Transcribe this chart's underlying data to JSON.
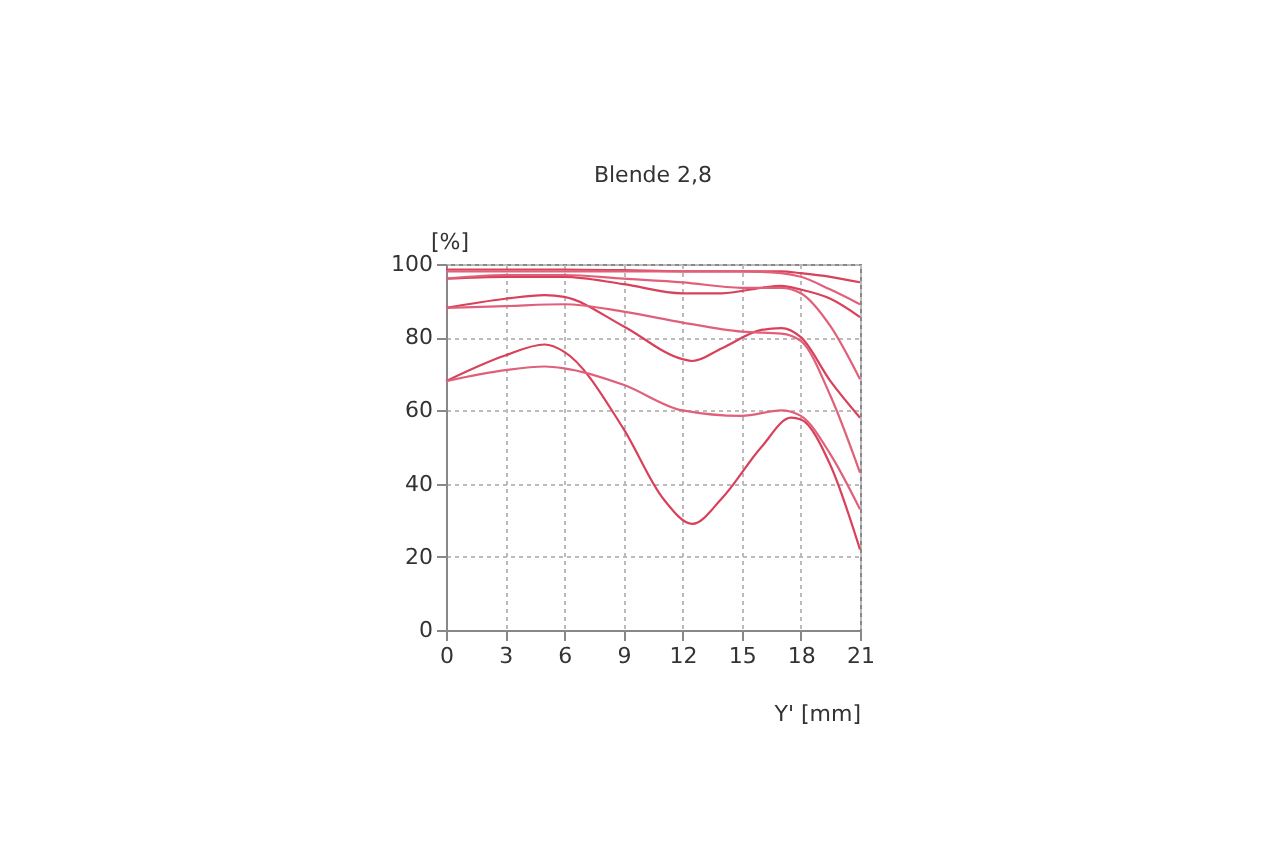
{
  "chart_data": {
    "type": "line",
    "title": "Blende 2,8",
    "xlabel": "Y' [mm]",
    "ylabel": "[%]",
    "xlim": [
      0,
      21
    ],
    "xticks": [
      0,
      3,
      6,
      9,
      12,
      15,
      18,
      21
    ],
    "ylim": [
      0,
      100
    ],
    "yticks": [
      0,
      20,
      40,
      60,
      80,
      100
    ],
    "grid": true,
    "legend": false,
    "marker": "none",
    "line_style": "solid",
    "series": [
      {
        "color": "#d9405a",
        "x": [
          0,
          3,
          6,
          9,
          12,
          15,
          17,
          18,
          19.5,
          21
        ],
        "values": [
          98.5,
          98.5,
          98.5,
          98.3,
          98,
          98,
          98,
          97.5,
          96.5,
          95
        ]
      },
      {
        "color": "#e0607a",
        "x": [
          0,
          3,
          6,
          9,
          12,
          15,
          17,
          18,
          19.5,
          21
        ],
        "values": [
          98,
          98,
          98,
          98,
          98,
          98,
          97.5,
          96.5,
          93,
          89
        ]
      },
      {
        "color": "#d9405a",
        "x": [
          0,
          3,
          6,
          9,
          12,
          14,
          16,
          17,
          18,
          19.5,
          21
        ],
        "values": [
          96,
          96.5,
          96.5,
          94.5,
          92,
          92,
          93.5,
          94,
          93,
          90.5,
          85.5
        ]
      },
      {
        "color": "#e0607a",
        "x": [
          0,
          3,
          6,
          9,
          12,
          15,
          17,
          18,
          19.5,
          21
        ],
        "values": [
          96,
          97,
          97,
          96,
          95,
          93.5,
          93.5,
          92,
          83,
          68.5
        ]
      },
      {
        "color": "#d9405a",
        "x": [
          0,
          3,
          5,
          6,
          9,
          12,
          12.5,
          14,
          16,
          17,
          18,
          19.5,
          21
        ],
        "values": [
          88,
          90.5,
          91.5,
          91,
          83,
          74,
          73.5,
          77,
          82,
          82.5,
          80,
          68,
          58
        ]
      },
      {
        "color": "#e0607a",
        "x": [
          0,
          3,
          6,
          9,
          12,
          15,
          17,
          18,
          19.5,
          21
        ],
        "values": [
          88,
          88.5,
          89,
          87,
          84,
          81.5,
          81,
          79,
          64,
          43
        ]
      },
      {
        "color": "#d9405a",
        "x": [
          0,
          3,
          5,
          6,
          9,
          11,
          12.5,
          14,
          16,
          17.5,
          18,
          19.5,
          21
        ],
        "values": [
          68,
          75,
          78,
          76,
          55,
          36,
          29,
          36,
          50,
          58,
          57.5,
          45,
          22
        ]
      },
      {
        "color": "#e0607a",
        "x": [
          0,
          3,
          5,
          6,
          9,
          12,
          15,
          17,
          18,
          19.5,
          21
        ],
        "values": [
          68,
          71,
          72,
          71.5,
          67,
          60,
          58.5,
          60,
          58.5,
          48,
          33
        ]
      }
    ]
  }
}
